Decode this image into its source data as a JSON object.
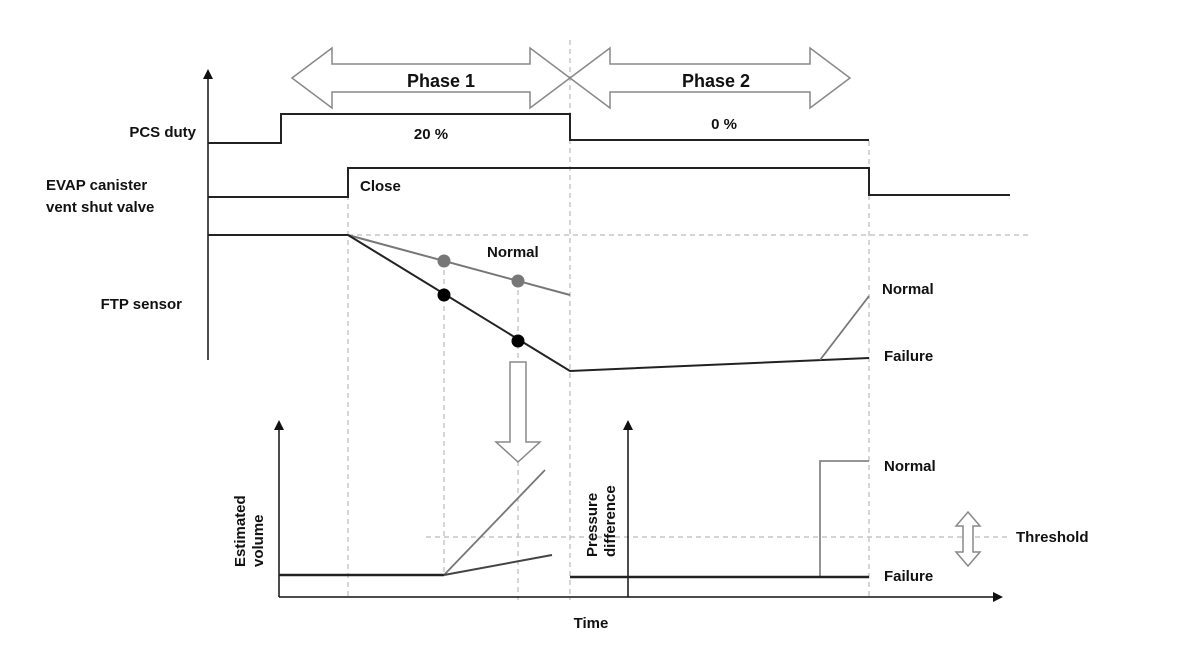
{
  "phases": {
    "phase1": "Phase 1",
    "phase2": "Phase 2"
  },
  "signals": {
    "pcs_duty": "PCS duty",
    "pcs_phase1_value": "20 %",
    "pcs_phase2_value": "0 %",
    "valve_line1": "EVAP canister",
    "valve_line2": "vent shut valve",
    "valve_state": "Close",
    "ftp_sensor": "FTP sensor",
    "ftp_normal_phase1": "Normal",
    "ftp_normal_phase2": "Normal",
    "ftp_failure_phase2": "Failure"
  },
  "lower": {
    "estimated_volume_line1": "Estimated",
    "estimated_volume_line2": "volume",
    "pressure_diff_line1": "Pressure",
    "pressure_diff_line2": "difference",
    "normal": "Normal",
    "failure": "Failure",
    "threshold": "Threshold",
    "time_axis": "Time"
  },
  "colors": {
    "line": "#222222",
    "normal_gray": "#777777",
    "dashed": "#bbbbbb"
  }
}
